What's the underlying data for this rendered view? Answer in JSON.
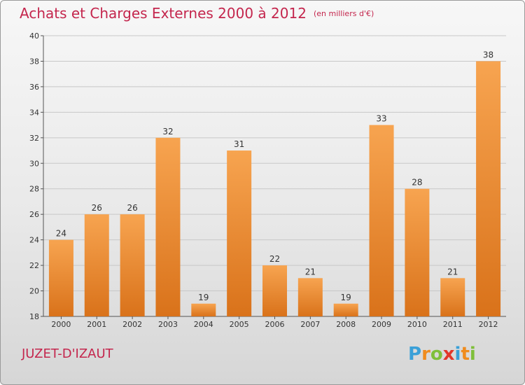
{
  "page": {
    "title": "Achats et Charges Externes 2000 à 2012",
    "subtitle": "(en milliers d'€)",
    "town": "JUZET-D'IZAUT",
    "logo": {
      "letters": [
        "P",
        "r",
        "o",
        "x",
        "i",
        "t",
        "i"
      ],
      "colors": [
        "#3aa0d8",
        "#f08c1e",
        "#7fbf3a",
        "#e2362a",
        "#3aa0d8",
        "#f08c1e",
        "#7fbf3a"
      ]
    }
  },
  "colors": {
    "bar_top": "#f7a450",
    "bar_bottom": "#d9721a",
    "accent": "#c4264d",
    "grid": "#c8c8c8"
  },
  "chart_data": {
    "type": "bar",
    "title": "Achats et Charges Externes 2000 à 2012",
    "subtitle": "(en milliers d'€)",
    "xlabel": "",
    "ylabel": "",
    "categories": [
      "2000",
      "2001",
      "2002",
      "2003",
      "2004",
      "2005",
      "2006",
      "2007",
      "2008",
      "2009",
      "2010",
      "2011",
      "2012"
    ],
    "values": [
      24,
      26,
      26,
      32,
      19,
      31,
      22,
      21,
      19,
      33,
      28,
      21,
      38
    ],
    "ylim": [
      18,
      40
    ],
    "yticks": [
      18,
      20,
      22,
      24,
      26,
      28,
      30,
      32,
      34,
      36,
      38,
      40
    ],
    "grid": true,
    "data_labels": true
  }
}
